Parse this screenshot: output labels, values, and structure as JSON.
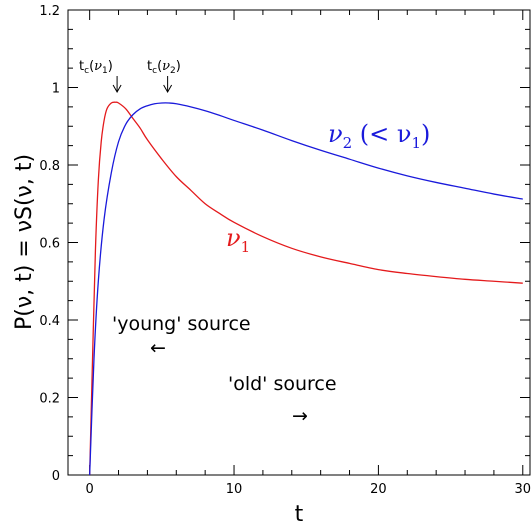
{
  "chart_data": {
    "type": "line",
    "title": "",
    "xlabel": "t",
    "ylabel": "P(ν, t) = νS(ν, t)",
    "xlim": [
      -1.5,
      30.5
    ],
    "ylim": [
      0,
      1.2
    ],
    "x_ticks": [
      0,
      10,
      20,
      30
    ],
    "y_ticks": [
      0,
      0.2,
      0.4,
      0.6,
      0.8,
      1,
      1.2
    ],
    "x_tick_labels": [
      "0",
      "10",
      "20",
      "30"
    ],
    "y_tick_labels": [
      "0",
      "0.2",
      "0.4",
      "0.6",
      "0.8",
      "1",
      "1.2"
    ],
    "grid": false,
    "series": [
      {
        "label_main": "ν",
        "label_sub": "1",
        "label_suffix": "",
        "color": "#e41a1c",
        "x": [
          0,
          0.2,
          0.4,
          0.6,
          0.8,
          1,
          1.2,
          1.5,
          1.8,
          2,
          2.5,
          3,
          3.5,
          4,
          5,
          6,
          7,
          8,
          9,
          10,
          12,
          14,
          16,
          18,
          20,
          22,
          24,
          26,
          28,
          30
        ],
        "y": [
          0,
          0.3,
          0.58,
          0.76,
          0.86,
          0.915,
          0.945,
          0.96,
          0.962,
          0.96,
          0.945,
          0.92,
          0.895,
          0.865,
          0.815,
          0.77,
          0.735,
          0.7,
          0.675,
          0.652,
          0.615,
          0.585,
          0.563,
          0.546,
          0.53,
          0.52,
          0.512,
          0.505,
          0.5,
          0.495
        ]
      },
      {
        "label_main": "ν",
        "label_sub": "2",
        "label_suffix": " (< ν",
        "label_suffix_sub": "1",
        "label_close": ")",
        "color": "#1a1adb",
        "x": [
          0,
          0.3,
          0.6,
          1,
          1.5,
          2,
          2.5,
          3,
          3.5,
          4,
          4.5,
          5,
          5.5,
          6,
          7,
          8,
          9,
          10,
          12,
          14,
          16,
          18,
          20,
          22,
          24,
          26,
          28,
          30
        ],
        "y": [
          0,
          0.3,
          0.5,
          0.66,
          0.78,
          0.86,
          0.905,
          0.93,
          0.945,
          0.953,
          0.958,
          0.96,
          0.96,
          0.958,
          0.95,
          0.94,
          0.928,
          0.915,
          0.89,
          0.863,
          0.838,
          0.815,
          0.792,
          0.772,
          0.755,
          0.74,
          0.725,
          0.712
        ]
      }
    ],
    "annotations": [
      {
        "text": "'young' source",
        "arrow": "←"
      },
      {
        "text": "'old' source",
        "arrow": "→"
      }
    ],
    "tc_markers": [
      {
        "text": "t",
        "sub": "c",
        "arg": "ν",
        "arg_sub": "1",
        "x": 1.9
      },
      {
        "text": "t",
        "sub": "c",
        "arg": "ν",
        "arg_sub": "2",
        "x": 5.4
      }
    ]
  }
}
